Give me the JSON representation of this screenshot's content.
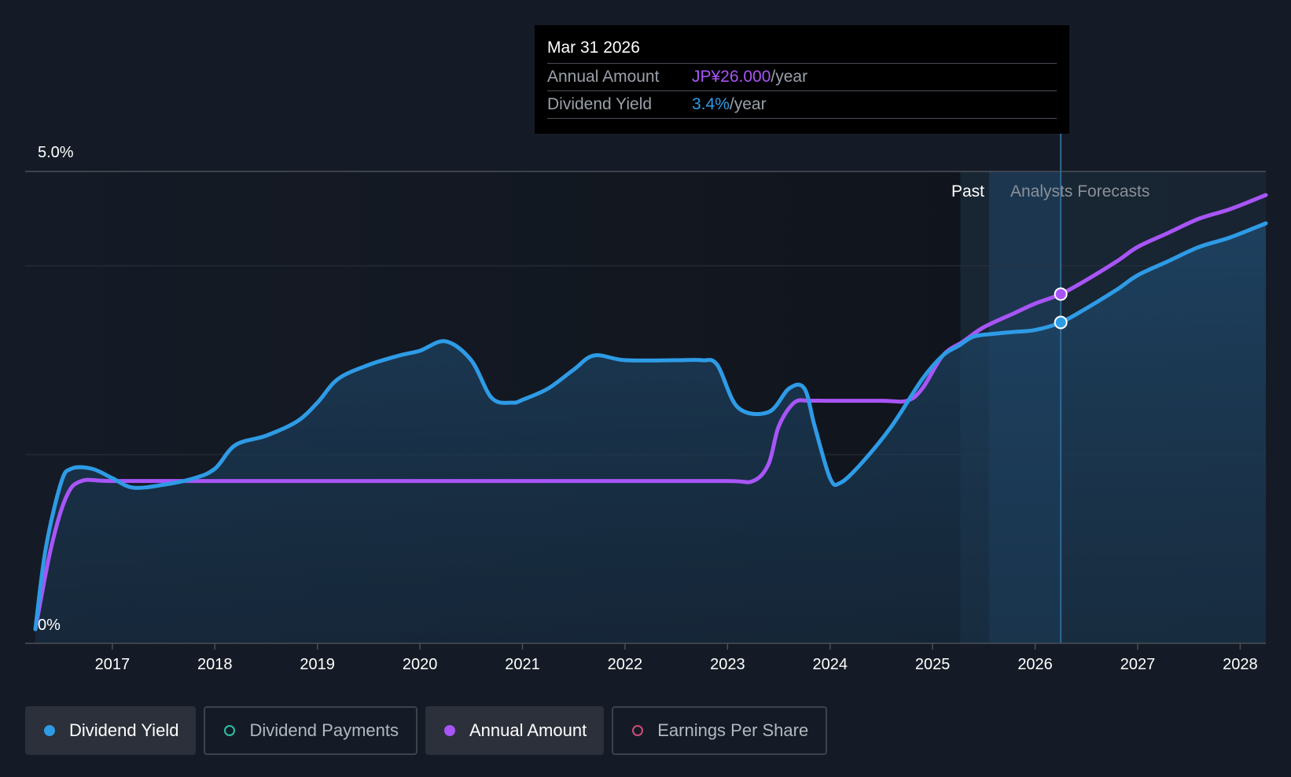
{
  "tooltip": {
    "date": "Mar 31 2026",
    "rows": [
      {
        "label": "Annual Amount",
        "value": "JP¥26.000",
        "unit": "/year"
      },
      {
        "label": "Dividend Yield",
        "value": "3.4%",
        "unit": "/year"
      }
    ]
  },
  "regions": {
    "past_label": "Past",
    "forecast_label": "Analysts Forecasts"
  },
  "legend": [
    {
      "label": "Dividend Yield",
      "color": "#2e9be6",
      "filled": true,
      "active": true
    },
    {
      "label": "Dividend Payments",
      "color": "#2dbfa6",
      "filled": false,
      "active": false
    },
    {
      "label": "Annual Amount",
      "color": "#a855f7",
      "filled": true,
      "active": true
    },
    {
      "label": "Earnings Per Share",
      "color": "#d04a7a",
      "filled": false,
      "active": false
    }
  ],
  "chart_data": {
    "type": "line",
    "y_tick_labels": [
      "5.0%",
      "0%"
    ],
    "ylim": [
      0,
      5.0
    ],
    "xlim": [
      2016.15,
      2028.25
    ],
    "x_tick_labels": [
      "2017",
      "2018",
      "2019",
      "2020",
      "2021",
      "2022",
      "2023",
      "2024",
      "2025",
      "2026",
      "2027",
      "2028"
    ],
    "forecast_start": 2025.27,
    "past_end": 2025.55,
    "highlight_x": 2026.25,
    "series": [
      {
        "name": "Dividend Yield",
        "unit": "%",
        "color": "#2e9be6",
        "x": [
          2016.25,
          2016.35,
          2016.5,
          2016.6,
          2016.8,
          2017.0,
          2017.2,
          2017.5,
          2017.8,
          2018.0,
          2018.2,
          2018.5,
          2018.8,
          2019.0,
          2019.2,
          2019.5,
          2019.8,
          2020.0,
          2020.25,
          2020.5,
          2020.7,
          2020.9,
          2021.0,
          2021.25,
          2021.5,
          2021.7,
          2022.0,
          2022.5,
          2022.75,
          2022.9,
          2023.1,
          2023.4,
          2023.6,
          2023.75,
          2023.85,
          2024.0,
          2024.1,
          2024.3,
          2024.6,
          2024.9,
          2025.1,
          2025.25,
          2025.4,
          2025.6,
          2025.8,
          2026.0,
          2026.25,
          2026.5,
          2026.8,
          2027.0,
          2027.3,
          2027.6,
          2027.9,
          2028.25
        ],
        "y": [
          0.15,
          1.0,
          1.7,
          1.85,
          1.85,
          1.75,
          1.65,
          1.68,
          1.75,
          1.85,
          2.1,
          2.2,
          2.35,
          2.55,
          2.8,
          2.95,
          3.05,
          3.1,
          3.2,
          3.0,
          2.6,
          2.55,
          2.58,
          2.7,
          2.9,
          3.05,
          3.0,
          3.0,
          3.0,
          2.95,
          2.5,
          2.45,
          2.7,
          2.7,
          2.3,
          1.75,
          1.7,
          1.9,
          2.3,
          2.8,
          3.05,
          3.15,
          3.25,
          3.28,
          3.3,
          3.32,
          3.4,
          3.55,
          3.75,
          3.9,
          4.05,
          4.2,
          4.3,
          4.45
        ]
      },
      {
        "name": "Annual Amount",
        "color": "#a855f7",
        "x": [
          2016.25,
          2016.4,
          2016.55,
          2016.7,
          2017.0,
          2018.0,
          2019.0,
          2020.0,
          2021.0,
          2022.0,
          2023.0,
          2023.25,
          2023.4,
          2023.5,
          2023.65,
          2023.8,
          2024.0,
          2024.5,
          2024.75,
          2024.9,
          2025.1,
          2025.3,
          2025.5,
          2025.8,
          2026.0,
          2026.25,
          2026.5,
          2026.8,
          2027.0,
          2027.3,
          2027.6,
          2027.9,
          2028.25
        ],
        "y": [
          0.15,
          1.0,
          1.55,
          1.72,
          1.72,
          1.72,
          1.72,
          1.72,
          1.72,
          1.72,
          1.72,
          1.72,
          1.9,
          2.3,
          2.55,
          2.57,
          2.57,
          2.57,
          2.57,
          2.7,
          3.05,
          3.2,
          3.35,
          3.5,
          3.6,
          3.7,
          3.85,
          4.05,
          4.2,
          4.35,
          4.5,
          4.6,
          4.75
        ]
      }
    ]
  }
}
